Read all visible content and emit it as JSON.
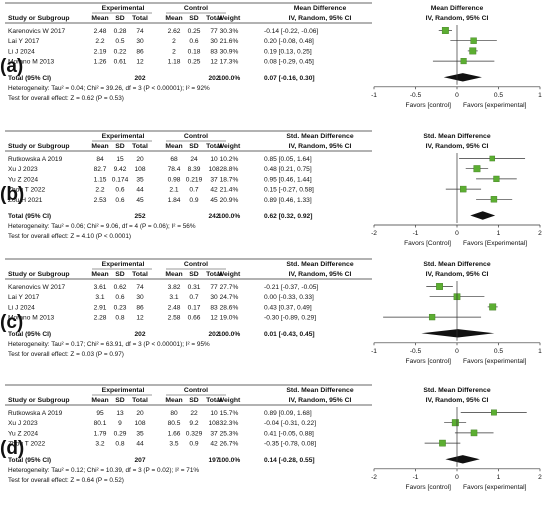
{
  "chart_data": [
    {
      "type": "forest",
      "panel_label": "(a)",
      "headers": {
        "study": "Study or Subgroup",
        "group1": "Experimental",
        "group2": "Control",
        "mean": "Mean",
        "sd": "SD",
        "total": "Total",
        "weight": "Weight",
        "effect_title": "Mean Difference",
        "effect_sub": "IV, Random, 95% CI",
        "plot_title": "Mean Difference",
        "plot_sub": "IV, Random, 95% CI"
      },
      "studies": [
        {
          "name": "Karenovics W 2017",
          "e_mean": "2.48",
          "e_sd": "0.28",
          "e_total": "74",
          "c_mean": "2.62",
          "c_sd": "0.25",
          "c_total": "77",
          "weight": "30.3%",
          "ci_text": "-0.14 [-0.22, -0.06]",
          "est": -0.14,
          "lo": -0.22,
          "hi": -0.06,
          "w": 30.3
        },
        {
          "name": "Lai Y 2017",
          "e_mean": "2.2",
          "e_sd": "0.5",
          "e_total": "30",
          "c_mean": "2",
          "c_sd": "0.6",
          "c_total": "30",
          "weight": "21.6%",
          "ci_text": "0.20 [-0.08, 0.48]",
          "est": 0.2,
          "lo": -0.08,
          "hi": 0.48,
          "w": 21.6
        },
        {
          "name": "Li J 2024",
          "e_mean": "2.19",
          "e_sd": "0.22",
          "e_total": "86",
          "c_mean": "2",
          "c_sd": "0.18",
          "c_total": "83",
          "weight": "30.9%",
          "ci_text": "0.19 [0.13, 0.25]",
          "est": 0.19,
          "lo": 0.13,
          "hi": 0.25,
          "w": 30.9
        },
        {
          "name": "Morano M 2013",
          "e_mean": "1.26",
          "e_sd": "0.61",
          "e_total": "12",
          "c_mean": "1.18",
          "c_sd": "0.25",
          "c_total": "12",
          "weight": "17.3%",
          "ci_text": "0.08 [-0.29, 0.45]",
          "est": 0.08,
          "lo": -0.29,
          "hi": 0.45,
          "w": 17.3
        }
      ],
      "total": {
        "label": "Total (95% CI)",
        "e_total": "202",
        "c_total": "202",
        "weight": "100.0%",
        "ci_text": "0.07 [-0.16, 0.30]",
        "est": 0.07,
        "lo": -0.16,
        "hi": 0.3
      },
      "heterogeneity": "Heterogeneity: Tau² = 0.04; Chi² = 39.26, df = 3 (P < 0.00001); I² = 92%",
      "overall_test": "Test for overall effect: Z = 0.62 (P = 0.53)",
      "axis": {
        "min": -1,
        "max": 1,
        "ticks": [
          -1,
          -0.5,
          0,
          0.5,
          1
        ],
        "tick_labels": [
          "-1",
          "-0.5",
          "0",
          "0.5",
          "1"
        ]
      },
      "favors_left": "Favors [control]",
      "favors_right": "Favors [experimental]"
    },
    {
      "type": "forest",
      "panel_label": "(b)",
      "headers": {
        "study": "Study or Subgroup",
        "group1": "Experimental",
        "group2": "Control",
        "mean": "Mean",
        "sd": "SD",
        "total": "Total",
        "weight": "Weight",
        "effect_title": "Std. Mean Difference",
        "effect_sub": "IV, Random, 95% CI",
        "plot_title": "Std. Mean Difference",
        "plot_sub": "IV, Random, 95% CI"
      },
      "studies": [
        {
          "name": "Rutkowska A 2019",
          "e_mean": "84",
          "e_sd": "15",
          "e_total": "20",
          "c_mean": "68",
          "c_sd": "24",
          "c_total": "10",
          "weight": "10.2%",
          "ci_text": "0.85 [0.05, 1.64]",
          "est": 0.85,
          "lo": 0.05,
          "hi": 1.64,
          "w": 10.2
        },
        {
          "name": "Xu J 2023",
          "e_mean": "82.7",
          "e_sd": "9.42",
          "e_total": "108",
          "c_mean": "78.4",
          "c_sd": "8.39",
          "c_total": "108",
          "weight": "28.8%",
          "ci_text": "0.48 [0.21, 0.75]",
          "est": 0.48,
          "lo": 0.21,
          "hi": 0.75,
          "w": 28.8
        },
        {
          "name": "Yu Z 2024",
          "e_mean": "1.15",
          "e_sd": "0.174",
          "e_total": "35",
          "c_mean": "0.98",
          "c_sd": "0.219",
          "c_total": "37",
          "weight": "18.7%",
          "ci_text": "0.95 [0.46, 1.44]",
          "est": 0.95,
          "lo": 0.46,
          "hi": 1.44,
          "w": 18.7
        },
        {
          "name": "Zhou T 2022",
          "e_mean": "2.2",
          "e_sd": "0.6",
          "e_total": "44",
          "c_mean": "2.1",
          "c_sd": "0.7",
          "c_total": "42",
          "weight": "21.4%",
          "ci_text": "0.15 [-0.27, 0.58]",
          "est": 0.15,
          "lo": -0.27,
          "hi": 0.58,
          "w": 21.4
        },
        {
          "name": "Zou H 2021",
          "e_mean": "2.53",
          "e_sd": "0.6",
          "e_total": "45",
          "c_mean": "1.84",
          "c_sd": "0.9",
          "c_total": "45",
          "weight": "20.9%",
          "ci_text": "0.89 [0.46, 1.33]",
          "est": 0.89,
          "lo": 0.46,
          "hi": 1.33,
          "w": 20.9
        }
      ],
      "total": {
        "label": "Total (95% CI)",
        "e_total": "252",
        "c_total": "242",
        "weight": "100.0%",
        "ci_text": "0.62 [0.32, 0.92]",
        "est": 0.62,
        "lo": 0.32,
        "hi": 0.92
      },
      "heterogeneity": "Heterogeneity: Tau² = 0.06; Chi² = 9.06, df = 4 (P = 0.06); I² = 56%",
      "overall_test": "Test for overall effect: Z = 4.10 (P < 0.0001)",
      "axis": {
        "min": -2,
        "max": 2,
        "ticks": [
          -2,
          -1,
          0,
          1,
          2
        ],
        "tick_labels": [
          "-2",
          "-1",
          "0",
          "1",
          "2"
        ]
      },
      "favors_left": "Favors [Control]",
      "favors_right": "Favors [Experimental]"
    },
    {
      "type": "forest",
      "panel_label": "(c)",
      "headers": {
        "study": "Study or Subgroup",
        "group1": "Experimental",
        "group2": "Control",
        "mean": "Mean",
        "sd": "SD",
        "total": "Total",
        "weight": "Weight",
        "effect_title": "Std. Mean Difference",
        "effect_sub": "IV, Random, 95% CI",
        "plot_title": "Std. Mean Difference",
        "plot_sub": "IV, Random, 95% CI"
      },
      "studies": [
        {
          "name": "Karenovics W 2017",
          "e_mean": "3.61",
          "e_sd": "0.62",
          "e_total": "74",
          "c_mean": "3.82",
          "c_sd": "0.31",
          "c_total": "77",
          "weight": "27.7%",
          "ci_text": "-0.21 [-0.37, -0.05]",
          "est": -0.21,
          "lo": -0.37,
          "hi": -0.05,
          "w": 27.7
        },
        {
          "name": "Lai Y 2017",
          "e_mean": "3.1",
          "e_sd": "0.6",
          "e_total": "30",
          "c_mean": "3.1",
          "c_sd": "0.7",
          "c_total": "30",
          "weight": "24.7%",
          "ci_text": "0.00 [-0.33, 0.33]",
          "est": 0.0,
          "lo": -0.33,
          "hi": 0.33,
          "w": 24.7
        },
        {
          "name": "Li J 2024",
          "e_mean": "2.91",
          "e_sd": "0.23",
          "e_total": "86",
          "c_mean": "2.48",
          "c_sd": "0.17",
          "c_total": "83",
          "weight": "28.6%",
          "ci_text": "0.43 [0.37, 0.49]",
          "est": 0.43,
          "lo": 0.37,
          "hi": 0.49,
          "w": 28.6
        },
        {
          "name": "Morano M 2013",
          "e_mean": "2.28",
          "e_sd": "0.8",
          "e_total": "12",
          "c_mean": "2.58",
          "c_sd": "0.66",
          "c_total": "12",
          "weight": "19.0%",
          "ci_text": "-0.30 [-0.89, 0.29]",
          "est": -0.3,
          "lo": -0.89,
          "hi": 0.29,
          "w": 19.0
        }
      ],
      "total": {
        "label": "Total (95% CI)",
        "e_total": "202",
        "c_total": "202",
        "weight": "100.0%",
        "ci_text": "0.01 [-0.43, 0.45]",
        "est": 0.01,
        "lo": -0.43,
        "hi": 0.45
      },
      "heterogeneity": "Heterogeneity: Tau² = 0.17; Chi² = 63.91, df = 3 (P < 0.00001); I² = 95%",
      "overall_test": "Test for overall effect: Z = 0.03 (P = 0.97)",
      "axis": {
        "min": -1,
        "max": 1,
        "ticks": [
          -1,
          -0.5,
          0,
          0.5,
          1
        ],
        "tick_labels": [
          "-1",
          "-0.5",
          "0",
          "0.5",
          "1"
        ]
      },
      "favors_left": "Favors [control]",
      "favors_right": "Favors [experimental]"
    },
    {
      "type": "forest",
      "panel_label": "(d)",
      "headers": {
        "study": "Study or Subgroup",
        "group1": "Experimental",
        "group2": "Control",
        "mean": "Mean",
        "sd": "SD",
        "total": "Total",
        "weight": "Weight",
        "effect_title": "Std. Mean Difference",
        "effect_sub": "IV, Random, 95% CI",
        "plot_title": "Std. Mean Difference",
        "plot_sub": "IV, Random, 95% CI"
      },
      "studies": [
        {
          "name": "Rutkowska A 2019",
          "e_mean": "95",
          "e_sd": "13",
          "e_total": "20",
          "c_mean": "80",
          "c_sd": "22",
          "c_total": "10",
          "weight": "15.7%",
          "ci_text": "0.89 [0.09, 1.68]",
          "est": 0.89,
          "lo": 0.09,
          "hi": 1.68,
          "w": 15.7
        },
        {
          "name": "Xu J 2023",
          "e_mean": "80.1",
          "e_sd": "9",
          "e_total": "108",
          "c_mean": "80.5",
          "c_sd": "9.2",
          "c_total": "108",
          "weight": "32.3%",
          "ci_text": "-0.04 [-0.31, 0.22]",
          "est": -0.04,
          "lo": -0.31,
          "hi": 0.22,
          "w": 32.3
        },
        {
          "name": "Yu Z 2024",
          "e_mean": "1.79",
          "e_sd": "0.29",
          "e_total": "35",
          "c_mean": "1.66",
          "c_sd": "0.329",
          "c_total": "37",
          "weight": "25.3%",
          "ci_text": "0.41 [-0.05, 0.88]",
          "est": 0.41,
          "lo": -0.05,
          "hi": 0.88,
          "w": 25.3
        },
        {
          "name": "Zhou T 2022",
          "e_mean": "3.2",
          "e_sd": "0.8",
          "e_total": "44",
          "c_mean": "3.5",
          "c_sd": "0.9",
          "c_total": "42",
          "weight": "26.7%",
          "ci_text": "-0.35 [-0.78, 0.08]",
          "est": -0.35,
          "lo": -0.78,
          "hi": 0.08,
          "w": 26.7
        }
      ],
      "total": {
        "label": "Total (95% CI)",
        "e_total": "207",
        "c_total": "197",
        "weight": "100.0%",
        "ci_text": "0.14 [-0.28, 0.55]",
        "est": 0.14,
        "lo": -0.28,
        "hi": 0.55
      },
      "heterogeneity": "Heterogeneity: Tau² = 0.12; Chi² = 10.39, df = 3 (P = 0.02); I² = 71%",
      "overall_test": "Test for overall effect: Z = 0.64 (P = 0.52)",
      "axis": {
        "min": -2,
        "max": 2,
        "ticks": [
          -2,
          -1,
          0,
          1,
          2
        ],
        "tick_labels": [
          "-2",
          "-1",
          "0",
          "1",
          "2"
        ]
      },
      "favors_left": "Favors [control]",
      "favors_right": "Favors [experimental]"
    }
  ],
  "colors": {
    "square": "#5cae32",
    "square_border": "#3d7a1e",
    "diamond": "#111111",
    "line": "#333333",
    "text": "#111111"
  }
}
